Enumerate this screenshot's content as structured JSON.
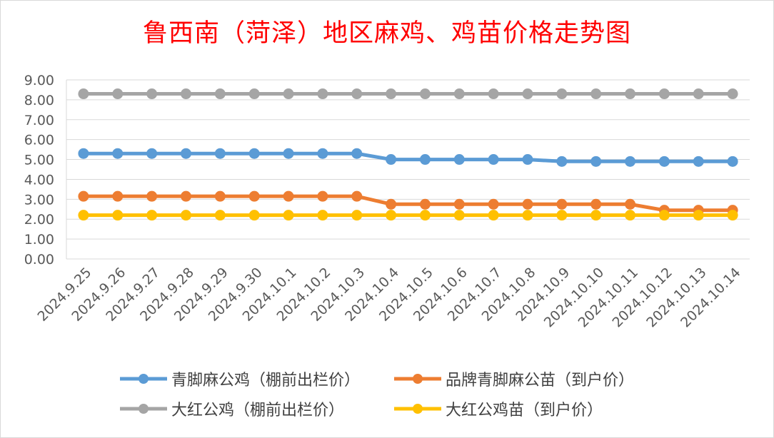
{
  "chart_data": {
    "type": "line",
    "title": "鲁西南（菏泽）地区麻鸡、鸡苗价格走势图",
    "xlabel": "",
    "ylabel": "",
    "ylim": [
      0,
      9
    ],
    "yticks": [
      "0.00",
      "1.00",
      "2.00",
      "3.00",
      "4.00",
      "5.00",
      "6.00",
      "7.00",
      "8.00",
      "9.00"
    ],
    "grid": true,
    "legend_position": "bottom",
    "categories": [
      "2024.9.25",
      "2024.9.26",
      "2024.9.27",
      "2024.9.28",
      "2024.9.29",
      "2024.9.30",
      "2024.10.1",
      "2024.10.2",
      "2024.10.3",
      "2024.10.4",
      "2024.10.5",
      "2024.10.6",
      "2024.10.7",
      "2024.10.8",
      "2024.10.9",
      "2024.10.10",
      "2024.10.11",
      "2024.10.12",
      "2024.10.13",
      "2024.10.14"
    ],
    "series": [
      {
        "name": "青脚麻公鸡（棚前出栏价）",
        "color": "#5b9bd5",
        "values": [
          5.3,
          5.3,
          5.3,
          5.3,
          5.3,
          5.3,
          5.3,
          5.3,
          5.3,
          5.0,
          5.0,
          5.0,
          5.0,
          5.0,
          4.9,
          4.9,
          4.9,
          4.9,
          4.9,
          4.9
        ]
      },
      {
        "name": "品牌青脚麻公苗（到户价）",
        "color": "#ed7d31",
        "values": [
          3.15,
          3.15,
          3.15,
          3.15,
          3.15,
          3.15,
          3.15,
          3.15,
          3.15,
          2.75,
          2.75,
          2.75,
          2.75,
          2.75,
          2.75,
          2.75,
          2.75,
          2.45,
          2.45,
          2.45
        ]
      },
      {
        "name": "大红公鸡（棚前出栏价）",
        "color": "#a5a5a5",
        "values": [
          8.3,
          8.3,
          8.3,
          8.3,
          8.3,
          8.3,
          8.3,
          8.3,
          8.3,
          8.3,
          8.3,
          8.3,
          8.3,
          8.3,
          8.3,
          8.3,
          8.3,
          8.3,
          8.3,
          8.3
        ]
      },
      {
        "name": "大红公鸡苗（到户价）",
        "color": "#ffc000",
        "values": [
          2.2,
          2.2,
          2.2,
          2.2,
          2.2,
          2.2,
          2.2,
          2.2,
          2.2,
          2.2,
          2.2,
          2.2,
          2.2,
          2.2,
          2.2,
          2.2,
          2.2,
          2.2,
          2.2,
          2.2
        ]
      }
    ]
  }
}
